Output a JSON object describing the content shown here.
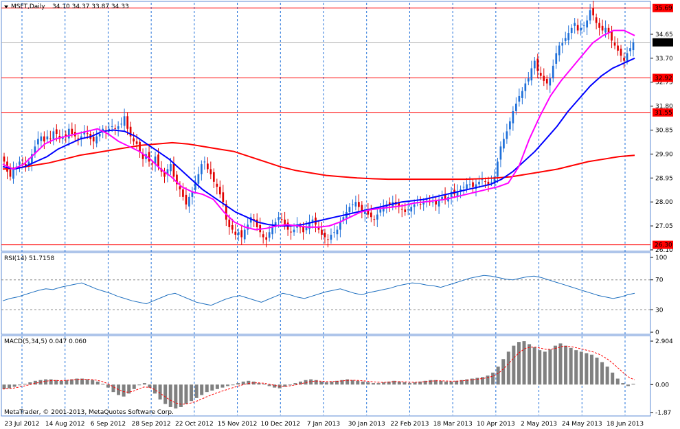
{
  "chart_data": [
    {
      "type": "candlestick",
      "symbol": "MSFT",
      "timeframe": "Daily",
      "header_title": "MSFT,Daily",
      "header_values": "34.10 34.37 33.87 34.33",
      "ylim": [
        26.1,
        35.9
      ],
      "y_ticks": [
        "34.65",
        "33.70",
        "32.75",
        "31.80",
        "30.85",
        "29.90",
        "28.95",
        "28.00",
        "27.05",
        "26.10"
      ],
      "x_ticks": [
        "23 Jul 2012",
        "14 Aug 2012",
        "6 Sep 2012",
        "28 Sep 2012",
        "22 Oct 2012",
        "15 Nov 2012",
        "10 Dec 2012",
        "7 Jan 2013",
        "30 Jan 2013",
        "22 Feb 2013",
        "18 Mar 2013",
        "10 Apr 2013",
        "2 May 2013",
        "24 May 2013",
        "18 Jun 2013"
      ],
      "horizontal_levels": [
        {
          "value": 35.69,
          "label": "35.69",
          "color": "#ff0000"
        },
        {
          "value": 32.92,
          "label": "32.92",
          "color": "#ff0000"
        },
        {
          "value": 31.55,
          "label": "31.55",
          "color": "#ff0000"
        },
        {
          "value": 26.3,
          "label": "26.30",
          "color": "#ff0000"
        }
      ],
      "current_price": {
        "value": 34.33,
        "label": "34.33"
      },
      "candles_close": [
        29.6,
        29.2,
        29.0,
        29.3,
        29.4,
        29.6,
        29.5,
        29.4,
        29.6,
        29.9,
        30.2,
        30.5,
        30.6,
        30.4,
        30.6,
        30.5,
        30.8,
        30.7,
        30.5,
        30.6,
        30.6,
        30.9,
        30.7,
        30.6,
        30.5,
        30.6,
        30.8,
        30.7,
        30.5,
        30.4,
        30.6,
        30.7,
        30.9,
        30.8,
        30.9,
        31.0,
        30.9,
        31.0,
        31.1,
        31.4,
        30.9,
        30.6,
        30.4,
        30.3,
        30.0,
        29.7,
        29.9,
        29.6,
        29.5,
        29.8,
        29.4,
        29.2,
        29.0,
        29.3,
        29.5,
        29.0,
        28.7,
        28.5,
        28.2,
        27.9,
        28.2,
        28.4,
        28.8,
        29.1,
        29.5,
        29.6,
        29.3,
        29.1,
        28.8,
        28.6,
        28.3,
        28.0,
        27.3,
        27.0,
        26.9,
        26.7,
        26.8,
        26.6,
        26.9,
        27.1,
        27.4,
        27.3,
        27.0,
        26.8,
        26.6,
        26.5,
        26.8,
        27.0,
        27.2,
        27.4,
        27.3,
        27.1,
        26.9,
        26.8,
        26.9,
        27.1,
        27.0,
        26.8,
        27.0,
        27.2,
        27.3,
        27.1,
        26.9,
        26.7,
        26.6,
        26.5,
        26.7,
        26.8,
        26.9,
        27.2,
        27.4,
        27.6,
        27.8,
        27.9,
        28.0,
        27.8,
        27.6,
        27.7,
        27.5,
        27.4,
        27.3,
        27.5,
        27.7,
        27.8,
        27.9,
        27.9,
        28.0,
        27.9,
        27.8,
        27.7,
        27.6,
        27.7,
        27.8,
        27.9,
        28.0,
        27.9,
        28.0,
        28.1,
        28.0,
        28.0,
        27.9,
        28.1,
        28.2,
        28.1,
        28.2,
        28.4,
        28.3,
        28.4,
        28.5,
        28.6,
        28.7,
        28.7,
        28.6,
        28.7,
        28.8,
        28.9,
        28.8,
        28.7,
        28.8,
        29.0,
        29.6,
        30.2,
        30.5,
        30.8,
        31.2,
        31.6,
        31.9,
        32.2,
        32.4,
        32.7,
        32.9,
        33.3,
        33.6,
        33.2,
        33.0,
        32.8,
        32.7,
        32.9,
        33.4,
        33.9,
        34.2,
        34.3,
        34.5,
        34.7,
        34.9,
        35.1,
        34.8,
        34.9,
        35.0,
        35.2,
        35.6,
        35.4,
        35.1,
        34.9,
        34.8,
        34.9,
        34.7,
        34.4,
        34.2,
        34.0,
        33.8,
        33.6,
        33.9,
        34.1,
        34.33
      ],
      "ma_fast": {
        "color": "#ff00ff",
        "series": [
          29.5,
          29.3,
          29.5,
          29.9,
          30.3,
          30.5,
          30.6,
          30.7,
          30.8,
          30.9,
          30.7,
          30.4,
          30.2,
          30.0,
          29.7,
          29.3,
          29.0,
          28.6,
          28.4,
          28.3,
          28.1,
          27.6,
          27.2,
          27.0,
          26.9,
          26.95,
          27.05,
          27.1,
          27.05,
          27.0,
          27.0,
          27.05,
          27.2,
          27.4,
          27.6,
          27.7,
          27.75,
          27.8,
          27.85,
          27.95,
          28.0,
          28.05,
          28.1,
          28.2,
          28.3,
          28.4,
          28.5,
          28.6,
          28.75,
          29.4,
          30.5,
          31.4,
          32.2,
          32.8,
          33.3,
          33.8,
          34.3,
          34.6,
          34.8,
          34.8,
          34.6
        ]
      },
      "ma_medium": {
        "color": "#0000ff",
        "series": [
          29.4,
          29.3,
          29.4,
          29.6,
          29.8,
          30.1,
          30.3,
          30.5,
          30.6,
          30.8,
          30.85,
          30.8,
          30.6,
          30.3,
          30.0,
          29.7,
          29.3,
          28.9,
          28.5,
          28.2,
          27.9,
          27.6,
          27.4,
          27.2,
          27.1,
          27.05,
          27.05,
          27.1,
          27.2,
          27.3,
          27.4,
          27.5,
          27.6,
          27.7,
          27.8,
          27.9,
          28.0,
          28.05,
          28.1,
          28.2,
          28.3,
          28.4,
          28.5,
          28.6,
          28.7,
          28.9,
          29.2,
          29.6,
          30.0,
          30.5,
          31.0,
          31.6,
          32.1,
          32.6,
          33.0,
          33.3,
          33.5,
          33.7
        ]
      },
      "ma_slow": {
        "color": "#ff0000",
        "series": [
          29.3,
          29.35,
          29.45,
          29.55,
          29.7,
          29.85,
          29.95,
          30.05,
          30.15,
          30.25,
          30.3,
          30.35,
          30.3,
          30.2,
          30.1,
          30.0,
          29.8,
          29.6,
          29.4,
          29.25,
          29.15,
          29.05,
          29.0,
          28.95,
          28.92,
          28.9,
          28.9,
          28.9,
          28.9,
          28.9,
          28.9,
          28.92,
          28.95,
          29.0,
          29.1,
          29.2,
          29.3,
          29.45,
          29.6,
          29.7,
          29.8,
          29.85
        ]
      }
    },
    {
      "type": "line",
      "indicator": "RSI(14) 51.7158",
      "ylim": [
        0,
        100
      ],
      "y_ticks": [
        "100",
        "70",
        "30",
        "0"
      ],
      "levels": [
        70,
        30
      ],
      "color": "#1e6fbf",
      "values": [
        42,
        45,
        47,
        50,
        53,
        56,
        58,
        57,
        60,
        62,
        64,
        66,
        62,
        58,
        55,
        52,
        48,
        45,
        42,
        40,
        38,
        42,
        46,
        50,
        52,
        48,
        44,
        40,
        38,
        36,
        40,
        44,
        47,
        49,
        46,
        43,
        40,
        44,
        48,
        52,
        50,
        47,
        45,
        48,
        51,
        54,
        56,
        58,
        55,
        52,
        50,
        53,
        55,
        57,
        59,
        62,
        64,
        66,
        65,
        63,
        62,
        60,
        63,
        66,
        69,
        72,
        74,
        76,
        75,
        73,
        71,
        70,
        72,
        74,
        75,
        73,
        70,
        67,
        64,
        61,
        58,
        55,
        52,
        49,
        47,
        45,
        47,
        50,
        52
      ]
    },
    {
      "type": "bar",
      "indicator": "MACD(5,34,5) 0.047 0.060",
      "ylim": [
        -1.87,
        2.904
      ],
      "y_ticks": [
        "2.904",
        "0.00",
        "-1.87"
      ],
      "bar_color": "#808080",
      "signal_color": "#ff0000",
      "values": [
        -0.3,
        -0.25,
        -0.15,
        -0.05,
        0.05,
        0.15,
        0.25,
        0.3,
        0.35,
        0.35,
        0.3,
        0.25,
        0.3,
        0.35,
        0.4,
        0.4,
        0.35,
        0.3,
        0.2,
        0.05,
        -0.2,
        -0.5,
        -0.7,
        -0.8,
        -0.6,
        -0.3,
        0.0,
        0.1,
        -0.2,
        -0.6,
        -1.0,
        -1.3,
        -1.5,
        -1.6,
        -1.5,
        -1.3,
        -1.1,
        -0.9,
        -0.7,
        -0.5,
        -0.4,
        -0.3,
        -0.2,
        -0.1,
        0.0,
        0.1,
        0.2,
        0.25,
        0.2,
        0.1,
        0.05,
        -0.1,
        -0.2,
        -0.25,
        -0.15,
        0.0,
        0.1,
        0.2,
        0.3,
        0.35,
        0.3,
        0.2,
        0.15,
        0.2,
        0.25,
        0.3,
        0.35,
        0.3,
        0.25,
        0.2,
        0.15,
        0.1,
        0.1,
        0.15,
        0.2,
        0.25,
        0.2,
        0.15,
        0.1,
        0.15,
        0.2,
        0.25,
        0.3,
        0.3,
        0.25,
        0.2,
        0.2,
        0.25,
        0.3,
        0.35,
        0.4,
        0.45,
        0.5,
        0.6,
        0.8,
        1.2,
        1.7,
        2.2,
        2.6,
        2.85,
        2.9,
        2.7,
        2.5,
        2.3,
        2.2,
        2.35,
        2.6,
        2.75,
        2.6,
        2.45,
        2.3,
        2.2,
        2.1,
        2.0,
        1.8,
        1.5,
        1.2,
        0.8,
        0.4,
        0.1,
        -0.1,
        0.05
      ]
    }
  ],
  "watermark": "MetaTrader, © 2001-2013, MetaQuotes Software Corp."
}
